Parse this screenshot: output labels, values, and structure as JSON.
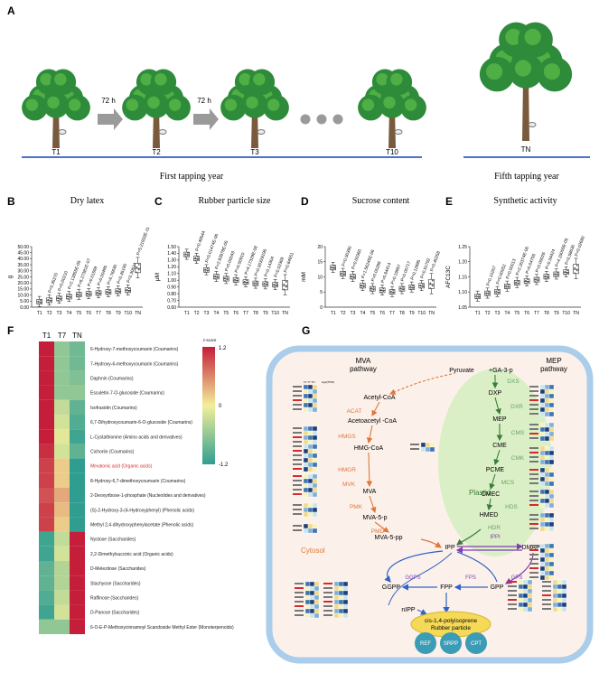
{
  "panelA": {
    "label": "A",
    "trees": [
      "T1",
      "T2",
      "T3",
      "T10",
      "TN"
    ],
    "interval": "72 h",
    "first_year": "First tapping year",
    "fifth_year": "Fifth tapping year"
  },
  "chart_data": [
    {
      "panel": "B",
      "type": "box",
      "title": "Dry latex",
      "ylabel": "g",
      "categories": [
        "T1",
        "T2",
        "T3",
        "T4",
        "T5",
        "T6",
        "T7",
        "T8",
        "T9",
        "T10",
        "TN"
      ],
      "ylim": [
        0,
        50
      ],
      "yticks": [
        "0.00",
        "5.00",
        "10.00",
        "15.00",
        "20.00",
        "25.00",
        "30.00",
        "35.00",
        "40.00",
        "45.00",
        "50.00"
      ],
      "medians": [
        4.3,
        5.5,
        7.0,
        8.5,
        10.2,
        10.8,
        11.5,
        12.3,
        13.0,
        13.8,
        32.0
      ],
      "pvalues": [
        "",
        "P=0.35270",
        "P=0.00210",
        "P=2.13855E-05",
        "P=5.27381E-07",
        "P=0.01558",
        "P=0.00495",
        "P=0.76630",
        "P=0.45190",
        "P=0.30634",
        "P=5.21933E-11"
      ]
    },
    {
      "panel": "C",
      "type": "box",
      "title": "Rubber particle size",
      "ylabel": "μM",
      "categories": [
        "T1",
        "T2",
        "T3",
        "T4",
        "T5",
        "T6",
        "T7",
        "T8",
        "T9",
        "T10",
        "TN"
      ],
      "ylim": [
        0.6,
        1.5
      ],
      "yticks": [
        "0.60",
        "0.70",
        "0.80",
        "0.90",
        "1.00",
        "1.10",
        "1.20",
        "1.30",
        "1.40",
        "1.50"
      ],
      "medians": [
        1.38,
        1.32,
        1.15,
        1.05,
        1.02,
        1.0,
        0.97,
        0.95,
        0.94,
        0.93,
        0.92
      ],
      "pvalues": [
        "",
        "P=0.49544",
        "P=0.01474E-06",
        "P=2.93978E-05",
        "P=0.00043",
        "P=0.00910",
        "P=4.17329E-08",
        "P=0.00328196",
        "P=0.14304",
        "P=0.02369",
        "P=0.84651"
      ]
    },
    {
      "panel": "D",
      "type": "box",
      "title": "Sucrose content",
      "ylabel": "mM",
      "categories": [
        "T1",
        "T2",
        "T3",
        "T4",
        "T5",
        "T6",
        "T7",
        "T8",
        "T9",
        "T10",
        "TN"
      ],
      "ylim": [
        0,
        20
      ],
      "yticks": [
        "0",
        "5",
        "10",
        "15",
        "20"
      ],
      "medians": [
        13.0,
        11.0,
        10.0,
        7.0,
        6.0,
        5.5,
        5.0,
        6.0,
        6.5,
        7.0,
        7.5
      ],
      "pvalues": [
        "",
        "P=0.00390",
        "P=0.00360",
        "P=1.56245E-06",
        "P=0.00286",
        "P=0.94414",
        "P=0.19957",
        "P=0.00717",
        "P=0.12895",
        "P=0.51792",
        "P=0.40258"
      ]
    },
    {
      "panel": "E",
      "type": "box",
      "title": "Synthetic activity",
      "ylabel": "AFC13C",
      "categories": [
        "T1",
        "T2",
        "T3",
        "T4",
        "T5",
        "T6",
        "T7",
        "T8",
        "T9",
        "T10",
        "TN"
      ],
      "ylim": [
        1.05,
        1.25
      ],
      "yticks": [
        "1.05",
        "1.10",
        "1.15",
        "1.20",
        "1.25"
      ],
      "medians": [
        1.085,
        1.095,
        1.1,
        1.118,
        1.13,
        1.135,
        1.14,
        1.15,
        1.158,
        1.165,
        1.175
      ],
      "pvalues": [
        "",
        "P=0.10207",
        "P=0.00052",
        "P=0.00013",
        "P=2.26374E-06",
        "P=0.64755",
        "P=0.00026",
        "P=0.34424",
        "P=4.15005E-05",
        "P=0.58630",
        "P=0.02680"
      ]
    },
    {
      "panel": "F",
      "type": "heatmap",
      "columns": [
        "T1",
        "T7",
        "TN"
      ],
      "legend_title": "z-score",
      "legend_ticks": [
        "1.2",
        "0",
        "-1.2"
      ],
      "rows": [
        {
          "label": "6-Hydroxy-7-methoxycoumarin (Coumarins)",
          "values": [
            1.2,
            -0.6,
            -0.8
          ],
          "highlight": false
        },
        {
          "label": "7-Hydroxy-6-methoxycoumarin (Coumarins)",
          "values": [
            1.2,
            -0.6,
            -0.8
          ],
          "highlight": false
        },
        {
          "label": "Daphnin (Coumarins)",
          "values": [
            1.2,
            -0.6,
            -0.7
          ],
          "highlight": false
        },
        {
          "label": "Esculetin-7-O-glucoside (Coumarins)",
          "values": [
            1.2,
            -0.6,
            -0.6
          ],
          "highlight": false
        },
        {
          "label": "Isofraxidin (Coumarins)",
          "values": [
            1.2,
            -0.3,
            -0.9
          ],
          "highlight": false
        },
        {
          "label": "6,7-Dihydroxycoumarin-6-O-glucoside (Coumarins)",
          "values": [
            1.2,
            -0.2,
            -1.0
          ],
          "highlight": false
        },
        {
          "label": "L-Cystathionine (Amino acids and derivatives)",
          "values": [
            1.2,
            -0.1,
            -1.1
          ],
          "highlight": false
        },
        {
          "label": "Cichoriin (Coumarins)",
          "values": [
            1.1,
            -0.2,
            -0.9
          ],
          "highlight": false
        },
        {
          "label": "Mevalonic acid (Organic acids)",
          "values": [
            1.0,
            0.2,
            -1.2
          ],
          "highlight": true
        },
        {
          "label": "8-Hydroxy-6,7-dimethoxycoumarin (Coumarins)",
          "values": [
            1.0,
            0.2,
            -1.2
          ],
          "highlight": false
        },
        {
          "label": "2-Deoxyribose-1-phosphate (Nucleotides and derivatives)",
          "values": [
            0.9,
            0.4,
            -1.2
          ],
          "highlight": false
        },
        {
          "label": "(S)-2-Hydroxy-3-(4-Hydroxyphenyl) (Phenolic acids)",
          "values": [
            1.0,
            0.3,
            -1.2
          ],
          "highlight": false
        },
        {
          "label": "Methyl 2,4-dihydroxyphenylacetate (Phenolic acids)",
          "values": [
            1.0,
            0.2,
            -1.2
          ],
          "highlight": false
        },
        {
          "label": "Nystose (Saccharides)",
          "values": [
            -1.1,
            -0.3,
            1.2
          ],
          "highlight": false
        },
        {
          "label": "2,2-Dimethylsuccinic acid (Organic acids)",
          "values": [
            -1.1,
            -0.2,
            1.2
          ],
          "highlight": false
        },
        {
          "label": "D-Melezitose (Saccharides)",
          "values": [
            -0.9,
            -0.4,
            1.2
          ],
          "highlight": false
        },
        {
          "label": "Stachyose (Saccharides)",
          "values": [
            -0.9,
            -0.4,
            1.2
          ],
          "highlight": false
        },
        {
          "label": "Raffinose (Saccharides)",
          "values": [
            -1.0,
            -0.3,
            1.2
          ],
          "highlight": false
        },
        {
          "label": "D-Panose (Saccharides)",
          "values": [
            -1.1,
            -0.2,
            1.2
          ],
          "highlight": false
        },
        {
          "label": "6-O-E-P-Methoxycinnamoyl Scandoside Methyl Ester (Monoterpenoids)",
          "values": [
            -0.6,
            -0.6,
            1.2
          ],
          "highlight": false
        }
      ]
    }
  ],
  "panelG": {
    "label": "G",
    "mva_title": "MVA\npathway",
    "mep_title": "MEP\npathway",
    "pyruvate": "Pyruvate",
    "ga3p": "+GA-3-p",
    "cytosol": "Cytosol",
    "plastid": "Plastid",
    "mva_nodes": [
      "Acetyl-CoA",
      "Acetoacetyl -CoA",
      "HMG-CoA",
      "MVA",
      "MVA-5-p",
      "MVA-5-pp"
    ],
    "mva_enzymes": [
      "ACAT",
      "HMGS",
      "HMGR",
      "MVK",
      "PMK",
      "PMD"
    ],
    "mep_nodes": [
      "DXP",
      "MEP",
      "CME",
      "PCME",
      "CMEC",
      "HMED"
    ],
    "mep_enzymes": [
      "DXS",
      "DXR",
      "CMS",
      "CMK",
      "MCS",
      "HDS",
      "HDR"
    ],
    "center_nodes": [
      "IPP",
      "DMAPP",
      "GGPP",
      "FPP",
      "GPP",
      "nIPP"
    ],
    "center_enzymes": [
      "IPPI",
      "GGPS",
      "FPS",
      "GPS"
    ],
    "particle": "cis-1,4-polyisoprene\nRubber particle",
    "proteins": [
      "REF",
      "SRPP",
      "CPT"
    ],
    "mini_header": "T1 T7 TN",
    "mini_legend": "log2(TPM)"
  }
}
